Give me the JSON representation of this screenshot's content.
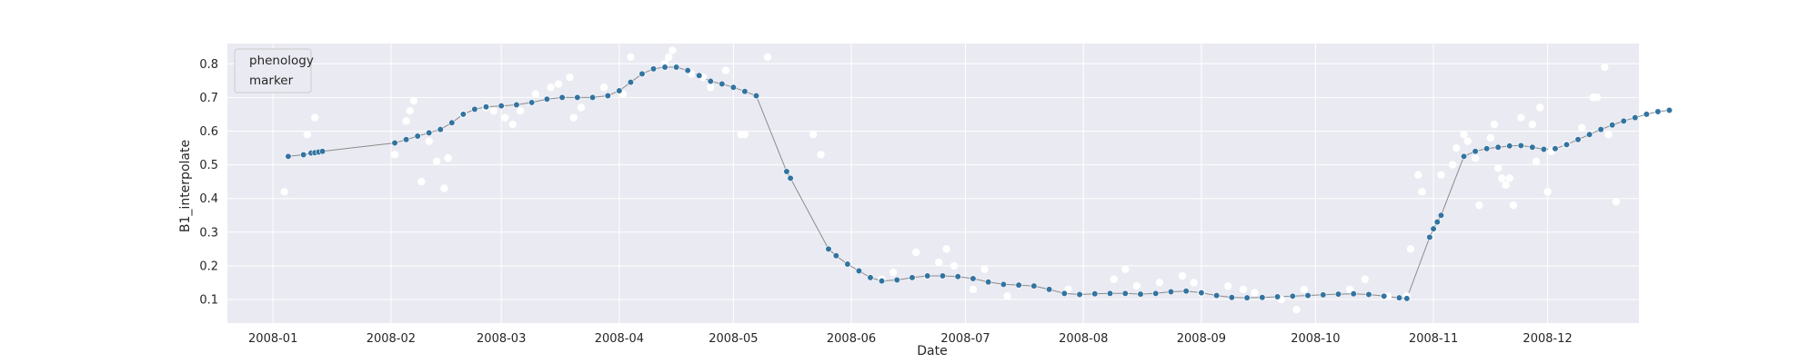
{
  "chart_data": {
    "type": "scatter",
    "xlabel": "Date",
    "ylabel": "B1_interpolate",
    "xlim": [
      "2007-12-20",
      "2008-12-25"
    ],
    "ylim": [
      0.03,
      0.86
    ],
    "x_ticks": [
      "2008-01",
      "2008-02",
      "2008-03",
      "2008-04",
      "2008-05",
      "2008-06",
      "2008-07",
      "2008-08",
      "2008-09",
      "2008-10",
      "2008-11",
      "2008-12"
    ],
    "y_ticks": [
      0.1,
      0.2,
      0.3,
      0.4,
      0.5,
      0.6,
      0.7,
      0.8
    ],
    "y_tick_labels": [
      "0.1",
      "0.2",
      "0.3",
      "0.4",
      "0.5",
      "0.6",
      "0.7",
      "0.8"
    ],
    "grid": true,
    "legend": {
      "placement": "top-left",
      "entries": [
        "phenology",
        "marker"
      ]
    },
    "colors": {
      "background": "#eaeaf2",
      "grid": "#ffffff",
      "interpolated_marker": "#3274a1",
      "raw_marker": "#ffffff",
      "line": "#8c8c8c"
    },
    "series": [
      {
        "kind": "raw-observations",
        "points": [
          {
            "x": "2008-01-04",
            "y": 0.42
          },
          {
            "x": "2008-01-10",
            "y": 0.59
          },
          {
            "x": "2008-01-12",
            "y": 0.64
          },
          {
            "x": "2008-02-02",
            "y": 0.53
          },
          {
            "x": "2008-02-05",
            "y": 0.63
          },
          {
            "x": "2008-02-06",
            "y": 0.66
          },
          {
            "x": "2008-02-07",
            "y": 0.69
          },
          {
            "x": "2008-02-09",
            "y": 0.45
          },
          {
            "x": "2008-02-11",
            "y": 0.57
          },
          {
            "x": "2008-02-13",
            "y": 0.51
          },
          {
            "x": "2008-02-15",
            "y": 0.43
          },
          {
            "x": "2008-02-16",
            "y": 0.52
          },
          {
            "x": "2008-02-20",
            "y": 0.65
          },
          {
            "x": "2008-02-26",
            "y": 0.67
          },
          {
            "x": "2008-02-28",
            "y": 0.66
          },
          {
            "x": "2008-03-02",
            "y": 0.64
          },
          {
            "x": "2008-03-04",
            "y": 0.62
          },
          {
            "x": "2008-03-06",
            "y": 0.66
          },
          {
            "x": "2008-03-10",
            "y": 0.71
          },
          {
            "x": "2008-03-14",
            "y": 0.73
          },
          {
            "x": "2008-03-16",
            "y": 0.74
          },
          {
            "x": "2008-03-19",
            "y": 0.76
          },
          {
            "x": "2008-03-20",
            "y": 0.64
          },
          {
            "x": "2008-03-22",
            "y": 0.67
          },
          {
            "x": "2008-03-28",
            "y": 0.73
          },
          {
            "x": "2008-04-02",
            "y": 0.71
          },
          {
            "x": "2008-04-04",
            "y": 0.82
          },
          {
            "x": "2008-04-13",
            "y": 0.8
          },
          {
            "x": "2008-04-14",
            "y": 0.82
          },
          {
            "x": "2008-04-15",
            "y": 0.84
          },
          {
            "x": "2008-04-20",
            "y": 0.77
          },
          {
            "x": "2008-04-23",
            "y": 0.76
          },
          {
            "x": "2008-04-25",
            "y": 0.73
          },
          {
            "x": "2008-04-29",
            "y": 0.78
          },
          {
            "x": "2008-05-03",
            "y": 0.59
          },
          {
            "x": "2008-05-04",
            "y": 0.59
          },
          {
            "x": "2008-05-10",
            "y": 0.82
          },
          {
            "x": "2008-05-22",
            "y": 0.59
          },
          {
            "x": "2008-05-24",
            "y": 0.53
          },
          {
            "x": "2008-06-09",
            "y": 0.16
          },
          {
            "x": "2008-06-12",
            "y": 0.18
          },
          {
            "x": "2008-06-18",
            "y": 0.24
          },
          {
            "x": "2008-06-24",
            "y": 0.21
          },
          {
            "x": "2008-06-26",
            "y": 0.25
          },
          {
            "x": "2008-06-28",
            "y": 0.2
          },
          {
            "x": "2008-07-03",
            "y": 0.13
          },
          {
            "x": "2008-07-06",
            "y": 0.19
          },
          {
            "x": "2008-07-12",
            "y": 0.11
          },
          {
            "x": "2008-07-28",
            "y": 0.13
          },
          {
            "x": "2008-08-09",
            "y": 0.16
          },
          {
            "x": "2008-08-12",
            "y": 0.19
          },
          {
            "x": "2008-08-15",
            "y": 0.14
          },
          {
            "x": "2008-08-21",
            "y": 0.15
          },
          {
            "x": "2008-08-27",
            "y": 0.17
          },
          {
            "x": "2008-08-30",
            "y": 0.15
          },
          {
            "x": "2008-09-01",
            "y": 0.12
          },
          {
            "x": "2008-09-08",
            "y": 0.14
          },
          {
            "x": "2008-09-12",
            "y": 0.13
          },
          {
            "x": "2008-09-15",
            "y": 0.12
          },
          {
            "x": "2008-09-22",
            "y": 0.1
          },
          {
            "x": "2008-09-26",
            "y": 0.07
          },
          {
            "x": "2008-09-28",
            "y": 0.13
          },
          {
            "x": "2008-10-10",
            "y": 0.13
          },
          {
            "x": "2008-10-14",
            "y": 0.16
          },
          {
            "x": "2008-10-20",
            "y": 0.11
          },
          {
            "x": "2008-10-25",
            "y": 0.11
          },
          {
            "x": "2008-10-26",
            "y": 0.25
          },
          {
            "x": "2008-10-28",
            "y": 0.47
          },
          {
            "x": "2008-10-29",
            "y": 0.42
          },
          {
            "x": "2008-11-03",
            "y": 0.47
          },
          {
            "x": "2008-11-06",
            "y": 0.5
          },
          {
            "x": "2008-11-07",
            "y": 0.55
          },
          {
            "x": "2008-11-09",
            "y": 0.59
          },
          {
            "x": "2008-11-10",
            "y": 0.57
          },
          {
            "x": "2008-11-12",
            "y": 0.52
          },
          {
            "x": "2008-11-13",
            "y": 0.38
          },
          {
            "x": "2008-11-16",
            "y": 0.58
          },
          {
            "x": "2008-11-17",
            "y": 0.62
          },
          {
            "x": "2008-11-18",
            "y": 0.49
          },
          {
            "x": "2008-11-19",
            "y": 0.46
          },
          {
            "x": "2008-11-20",
            "y": 0.44
          },
          {
            "x": "2008-11-21",
            "y": 0.46
          },
          {
            "x": "2008-11-22",
            "y": 0.38
          },
          {
            "x": "2008-11-24",
            "y": 0.64
          },
          {
            "x": "2008-11-27",
            "y": 0.62
          },
          {
            "x": "2008-11-28",
            "y": 0.51
          },
          {
            "x": "2008-11-29",
            "y": 0.67
          },
          {
            "x": "2008-12-01",
            "y": 0.42
          },
          {
            "x": "2008-12-02",
            "y": 0.54
          },
          {
            "x": "2008-12-06",
            "y": 0.56
          },
          {
            "x": "2008-12-10",
            "y": 0.61
          },
          {
            "x": "2008-12-13",
            "y": 0.7
          },
          {
            "x": "2008-12-14",
            "y": 0.7
          },
          {
            "x": "2008-12-16",
            "y": 0.79
          },
          {
            "x": "2008-12-17",
            "y": 0.59
          },
          {
            "x": "2008-12-19",
            "y": 0.39
          }
        ]
      },
      {
        "kind": "interpolated-curve",
        "points": [
          {
            "x": "2008-01-05",
            "y": 0.525
          },
          {
            "x": "2008-01-09",
            "y": 0.53
          },
          {
            "x": "2008-01-11",
            "y": 0.535
          },
          {
            "x": "2008-01-12",
            "y": 0.536
          },
          {
            "x": "2008-01-13",
            "y": 0.538
          },
          {
            "x": "2008-01-14",
            "y": 0.54
          },
          {
            "x": "2008-02-02",
            "y": 0.565
          },
          {
            "x": "2008-02-05",
            "y": 0.575
          },
          {
            "x": "2008-02-08",
            "y": 0.585
          },
          {
            "x": "2008-02-11",
            "y": 0.595
          },
          {
            "x": "2008-02-14",
            "y": 0.605
          },
          {
            "x": "2008-02-17",
            "y": 0.625
          },
          {
            "x": "2008-02-20",
            "y": 0.65
          },
          {
            "x": "2008-02-23",
            "y": 0.665
          },
          {
            "x": "2008-02-26",
            "y": 0.672
          },
          {
            "x": "2008-03-01",
            "y": 0.675
          },
          {
            "x": "2008-03-05",
            "y": 0.678
          },
          {
            "x": "2008-03-09",
            "y": 0.685
          },
          {
            "x": "2008-03-13",
            "y": 0.695
          },
          {
            "x": "2008-03-17",
            "y": 0.7
          },
          {
            "x": "2008-03-21",
            "y": 0.7
          },
          {
            "x": "2008-03-25",
            "y": 0.7
          },
          {
            "x": "2008-03-29",
            "y": 0.705
          },
          {
            "x": "2008-04-01",
            "y": 0.72
          },
          {
            "x": "2008-04-04",
            "y": 0.745
          },
          {
            "x": "2008-04-07",
            "y": 0.77
          },
          {
            "x": "2008-04-10",
            "y": 0.785
          },
          {
            "x": "2008-04-13",
            "y": 0.79
          },
          {
            "x": "2008-04-16",
            "y": 0.79
          },
          {
            "x": "2008-04-19",
            "y": 0.78
          },
          {
            "x": "2008-04-22",
            "y": 0.765
          },
          {
            "x": "2008-04-25",
            "y": 0.748
          },
          {
            "x": "2008-04-28",
            "y": 0.74
          },
          {
            "x": "2008-05-01",
            "y": 0.73
          },
          {
            "x": "2008-05-04",
            "y": 0.718
          },
          {
            "x": "2008-05-07",
            "y": 0.705
          },
          {
            "x": "2008-05-15",
            "y": 0.48
          },
          {
            "x": "2008-05-16",
            "y": 0.46
          },
          {
            "x": "2008-05-26",
            "y": 0.25
          },
          {
            "x": "2008-05-28",
            "y": 0.23
          },
          {
            "x": "2008-05-31",
            "y": 0.205
          },
          {
            "x": "2008-06-03",
            "y": 0.185
          },
          {
            "x": "2008-06-06",
            "y": 0.165
          },
          {
            "x": "2008-06-09",
            "y": 0.155
          },
          {
            "x": "2008-06-13",
            "y": 0.158
          },
          {
            "x": "2008-06-17",
            "y": 0.165
          },
          {
            "x": "2008-06-21",
            "y": 0.17
          },
          {
            "x": "2008-06-25",
            "y": 0.17
          },
          {
            "x": "2008-06-29",
            "y": 0.168
          },
          {
            "x": "2008-07-03",
            "y": 0.162
          },
          {
            "x": "2008-07-07",
            "y": 0.152
          },
          {
            "x": "2008-07-11",
            "y": 0.145
          },
          {
            "x": "2008-07-15",
            "y": 0.143
          },
          {
            "x": "2008-07-19",
            "y": 0.14
          },
          {
            "x": "2008-07-23",
            "y": 0.13
          },
          {
            "x": "2008-07-27",
            "y": 0.118
          },
          {
            "x": "2008-07-31",
            "y": 0.115
          },
          {
            "x": "2008-08-04",
            "y": 0.117
          },
          {
            "x": "2008-08-08",
            "y": 0.118
          },
          {
            "x": "2008-08-12",
            "y": 0.118
          },
          {
            "x": "2008-08-16",
            "y": 0.116
          },
          {
            "x": "2008-08-20",
            "y": 0.118
          },
          {
            "x": "2008-08-24",
            "y": 0.123
          },
          {
            "x": "2008-08-28",
            "y": 0.125
          },
          {
            "x": "2008-09-01",
            "y": 0.12
          },
          {
            "x": "2008-09-05",
            "y": 0.112
          },
          {
            "x": "2008-09-09",
            "y": 0.106
          },
          {
            "x": "2008-09-13",
            "y": 0.105
          },
          {
            "x": "2008-09-17",
            "y": 0.106
          },
          {
            "x": "2008-09-21",
            "y": 0.108
          },
          {
            "x": "2008-09-25",
            "y": 0.11
          },
          {
            "x": "2008-09-29",
            "y": 0.112
          },
          {
            "x": "2008-10-03",
            "y": 0.114
          },
          {
            "x": "2008-10-07",
            "y": 0.116
          },
          {
            "x": "2008-10-11",
            "y": 0.117
          },
          {
            "x": "2008-10-15",
            "y": 0.115
          },
          {
            "x": "2008-10-19",
            "y": 0.11
          },
          {
            "x": "2008-10-23",
            "y": 0.105
          },
          {
            "x": "2008-10-25",
            "y": 0.103
          },
          {
            "x": "2008-10-31",
            "y": 0.285
          },
          {
            "x": "2008-11-01",
            "y": 0.31
          },
          {
            "x": "2008-11-02",
            "y": 0.33
          },
          {
            "x": "2008-11-03",
            "y": 0.35
          },
          {
            "x": "2008-11-09",
            "y": 0.525
          },
          {
            "x": "2008-11-12",
            "y": 0.54
          },
          {
            "x": "2008-11-15",
            "y": 0.548
          },
          {
            "x": "2008-11-18",
            "y": 0.552
          },
          {
            "x": "2008-11-21",
            "y": 0.556
          },
          {
            "x": "2008-11-24",
            "y": 0.557
          },
          {
            "x": "2008-11-27",
            "y": 0.552
          },
          {
            "x": "2008-11-30",
            "y": 0.546
          },
          {
            "x": "2008-12-03",
            "y": 0.548
          },
          {
            "x": "2008-12-06",
            "y": 0.56
          },
          {
            "x": "2008-12-09",
            "y": 0.575
          },
          {
            "x": "2008-12-12",
            "y": 0.59
          },
          {
            "x": "2008-12-15",
            "y": 0.605
          },
          {
            "x": "2008-12-18",
            "y": 0.618
          },
          {
            "x": "2008-12-21",
            "y": 0.63
          },
          {
            "x": "2008-12-24",
            "y": 0.64
          },
          {
            "x": "2008-12-27",
            "y": 0.65
          },
          {
            "x": "2008-12-30",
            "y": 0.658
          },
          {
            "x": "2009-01-02",
            "y": 0.662
          }
        ]
      }
    ]
  }
}
